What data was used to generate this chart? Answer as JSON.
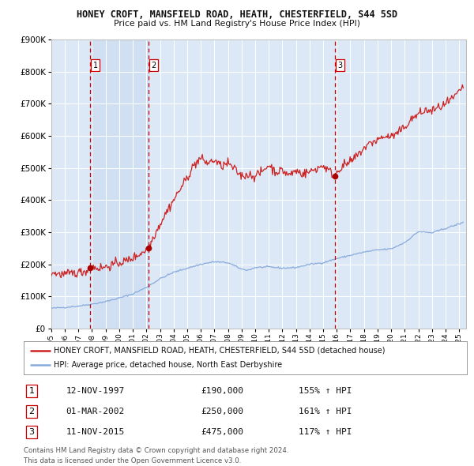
{
  "title": "HONEY CROFT, MANSFIELD ROAD, HEATH, CHESTERFIELD, S44 5SD",
  "subtitle": "Price paid vs. HM Land Registry's House Price Index (HPI)",
  "legend_line1": "HONEY CROFT, MANSFIELD ROAD, HEATH, CHESTERFIELD, S44 5SD (detached house)",
  "legend_line2": "HPI: Average price, detached house, North East Derbyshire",
  "footer1": "Contains HM Land Registry data © Crown copyright and database right 2024.",
  "footer2": "This data is licensed under the Open Government Licence v3.0.",
  "transactions": [
    {
      "num": 1,
      "date": "12-NOV-1997",
      "price": 190000,
      "hpi_pct": "155% ↑ HPI",
      "date_val": 1997.87
    },
    {
      "num": 2,
      "date": "01-MAR-2002",
      "price": 250000,
      "hpi_pct": "161% ↑ HPI",
      "date_val": 2002.17
    },
    {
      "num": 3,
      "date": "11-NOV-2015",
      "price": 475000,
      "hpi_pct": "117% ↑ HPI",
      "date_val": 2015.87
    }
  ],
  "vline_color": "#cc0000",
  "red_line_color": "#cc2222",
  "blue_line_color": "#88aadd",
  "plot_bg_color": "#dce8f5",
  "grid_color": "#ffffff",
  "fig_bg_color": "#ffffff",
  "ylim": [
    0,
    900000
  ],
  "xlim_start": 1995.0,
  "xlim_end": 2025.5,
  "yticks": [
    0,
    100000,
    200000,
    300000,
    400000,
    500000,
    600000,
    700000,
    800000,
    900000
  ],
  "xticks": [
    1995,
    1996,
    1997,
    1998,
    1999,
    2000,
    2001,
    2002,
    2003,
    2004,
    2005,
    2006,
    2007,
    2008,
    2009,
    2010,
    2011,
    2012,
    2013,
    2014,
    2015,
    2016,
    2017,
    2018,
    2019,
    2020,
    2021,
    2022,
    2023,
    2024,
    2025
  ],
  "hpi_anchors": [
    [
      1995.0,
      63000
    ],
    [
      1996.0,
      66000
    ],
    [
      1997.0,
      70000
    ],
    [
      1998.0,
      76000
    ],
    [
      1999.0,
      84000
    ],
    [
      2000.0,
      95000
    ],
    [
      2001.0,
      108000
    ],
    [
      2002.0,
      128000
    ],
    [
      2003.0,
      155000
    ],
    [
      2004.0,
      175000
    ],
    [
      2005.0,
      188000
    ],
    [
      2006.0,
      200000
    ],
    [
      2007.0,
      208000
    ],
    [
      2008.0,
      205000
    ],
    [
      2008.5,
      195000
    ],
    [
      2009.0,
      185000
    ],
    [
      2009.5,
      182000
    ],
    [
      2010.0,
      190000
    ],
    [
      2011.0,
      192000
    ],
    [
      2012.0,
      188000
    ],
    [
      2013.0,
      190000
    ],
    [
      2014.0,
      200000
    ],
    [
      2015.0,
      205000
    ],
    [
      2016.0,
      218000
    ],
    [
      2017.0,
      228000
    ],
    [
      2018.0,
      238000
    ],
    [
      2019.0,
      245000
    ],
    [
      2020.0,
      248000
    ],
    [
      2021.0,
      268000
    ],
    [
      2022.0,
      302000
    ],
    [
      2023.0,
      298000
    ],
    [
      2024.0,
      312000
    ],
    [
      2025.3,
      330000
    ]
  ],
  "red_anchors": [
    [
      1995.0,
      175000
    ],
    [
      1995.5,
      170000
    ],
    [
      1996.0,
      168000
    ],
    [
      1996.5,
      172000
    ],
    [
      1997.0,
      175000
    ],
    [
      1997.5,
      178000
    ],
    [
      1997.87,
      190000
    ],
    [
      1998.0,
      192000
    ],
    [
      1998.5,
      188000
    ],
    [
      1999.0,
      192000
    ],
    [
      1999.5,
      198000
    ],
    [
      2000.0,
      205000
    ],
    [
      2000.5,
      210000
    ],
    [
      2001.0,
      220000
    ],
    [
      2001.5,
      232000
    ],
    [
      2002.17,
      250000
    ],
    [
      2002.5,
      285000
    ],
    [
      2003.0,
      325000
    ],
    [
      2003.5,
      365000
    ],
    [
      2004.0,
      400000
    ],
    [
      2004.5,
      435000
    ],
    [
      2005.0,
      470000
    ],
    [
      2005.5,
      510000
    ],
    [
      2006.0,
      530000
    ],
    [
      2006.5,
      515000
    ],
    [
      2007.0,
      525000
    ],
    [
      2007.5,
      505000
    ],
    [
      2008.0,
      515000
    ],
    [
      2008.5,
      495000
    ],
    [
      2009.0,
      475000
    ],
    [
      2009.5,
      480000
    ],
    [
      2010.0,
      475000
    ],
    [
      2010.5,
      488000
    ],
    [
      2011.0,
      510000
    ],
    [
      2011.5,
      488000
    ],
    [
      2012.0,
      492000
    ],
    [
      2012.5,
      478000
    ],
    [
      2013.0,
      492000
    ],
    [
      2013.5,
      482000
    ],
    [
      2014.0,
      488000
    ],
    [
      2014.5,
      498000
    ],
    [
      2015.0,
      508000
    ],
    [
      2015.87,
      475000
    ],
    [
      2016.0,
      490000
    ],
    [
      2016.5,
      508000
    ],
    [
      2017.0,
      518000
    ],
    [
      2017.5,
      538000
    ],
    [
      2018.0,
      562000
    ],
    [
      2018.5,
      578000
    ],
    [
      2019.0,
      588000
    ],
    [
      2019.5,
      598000
    ],
    [
      2020.0,
      598000
    ],
    [
      2020.5,
      608000
    ],
    [
      2021.0,
      628000
    ],
    [
      2021.5,
      652000
    ],
    [
      2022.0,
      668000
    ],
    [
      2022.5,
      678000
    ],
    [
      2023.0,
      678000
    ],
    [
      2023.5,
      688000
    ],
    [
      2024.0,
      698000
    ],
    [
      2024.5,
      715000
    ],
    [
      2025.0,
      735000
    ],
    [
      2025.3,
      755000
    ]
  ]
}
